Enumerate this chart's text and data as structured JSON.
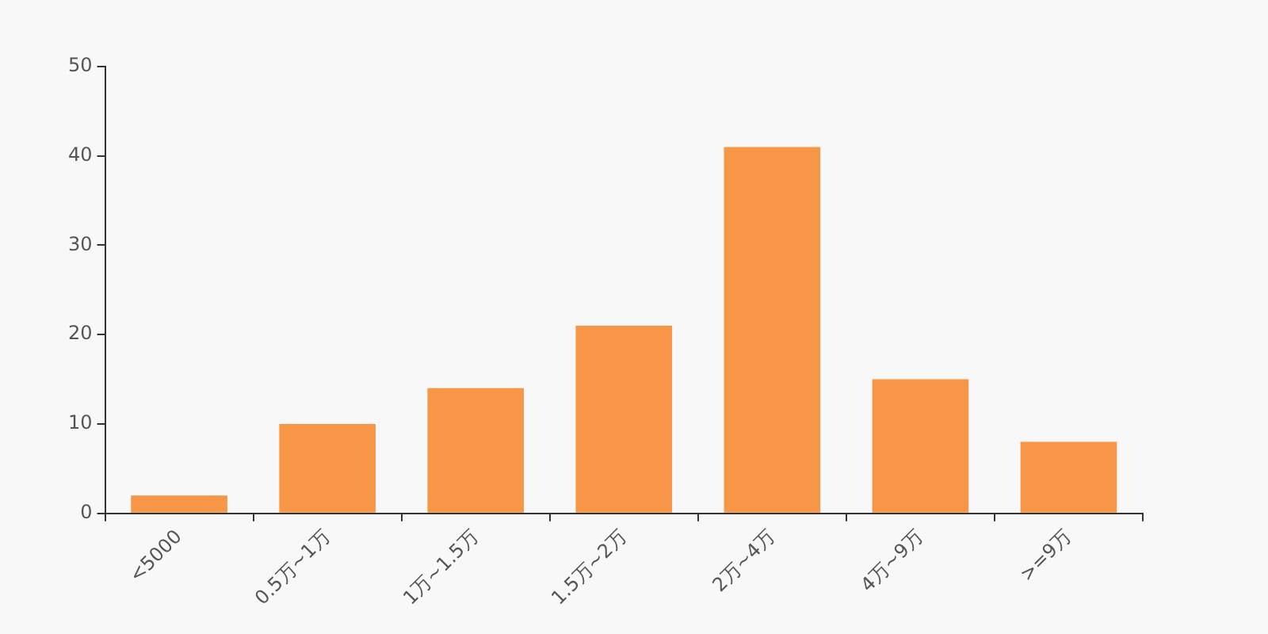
{
  "chart_data": {
    "type": "bar",
    "categories": [
      "<5000",
      "0.5万~1万",
      "1万~1.5万",
      "1.5万~2万",
      "2万~4万",
      "4万~9万",
      ">=9万"
    ],
    "values": [
      2,
      10,
      14,
      21,
      41,
      15,
      8
    ],
    "color": "#f79646",
    "ylim": [
      0,
      50
    ],
    "yticks": [
      0,
      10,
      20,
      30,
      40,
      50
    ],
    "grid": false,
    "legend": false
  }
}
